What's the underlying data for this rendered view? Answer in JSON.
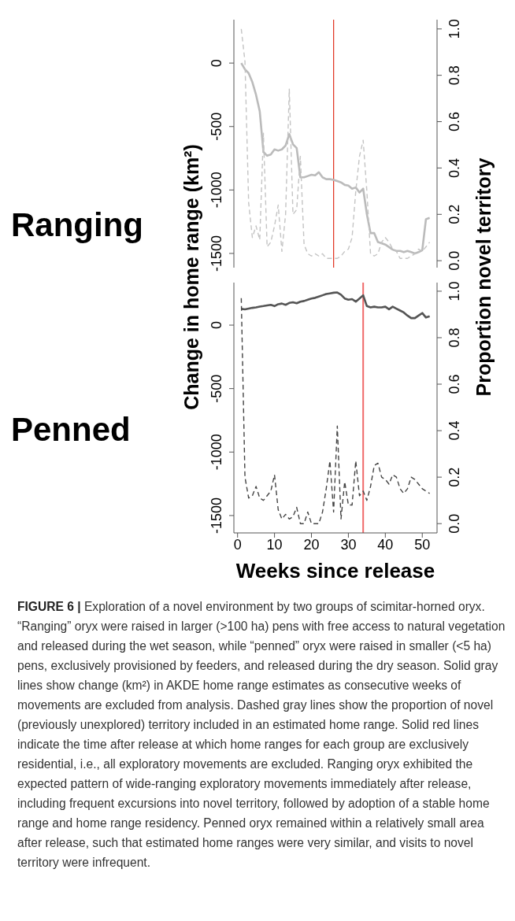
{
  "chart_data": [
    {
      "type": "line",
      "title": "Ranging",
      "ylabel": "Change in home range (km²)",
      "y2label": "Proportion novel territory",
      "x": [
        1,
        2,
        3,
        4,
        5,
        6,
        7,
        8,
        9,
        10,
        11,
        12,
        13,
        14,
        15,
        16,
        17,
        18,
        19,
        20,
        21,
        22,
        23,
        24,
        25,
        26,
        27,
        28,
        29,
        30,
        31,
        32,
        33,
        34,
        35,
        36,
        37,
        38,
        39,
        40,
        41,
        42,
        43,
        44,
        45,
        46,
        47,
        48,
        49,
        50,
        51,
        52
      ],
      "series": [
        {
          "color": "#bbbbbb",
          "line_style": "solid",
          "values": [
            0,
            -50,
            -80,
            -150,
            -250,
            -380,
            -700,
            -730,
            -720,
            -680,
            -690,
            -680,
            -650,
            -560,
            -640,
            -670,
            -900,
            -900,
            -890,
            -880,
            -885,
            -860,
            -900,
            -915,
            -915,
            -920,
            -930,
            -940,
            -960,
            -965,
            -990,
            -980,
            -1020,
            -990,
            -1190,
            -1340,
            -1340,
            -1410,
            -1420,
            -1430,
            -1450,
            -1470,
            -1480,
            -1480,
            -1490,
            -1480,
            -1490,
            -1500,
            -1490,
            -1475,
            -1230,
            -1220
          ]
        },
        {
          "color": "#c4c4c4",
          "line_style": "dashed",
          "axis": "y2",
          "values": [
            1.0,
            0.86,
            0.25,
            0.1,
            0.15,
            0.09,
            0.55,
            0.06,
            0.08,
            0.15,
            0.24,
            0.04,
            0.2,
            0.74,
            0.2,
            0.22,
            0.45,
            0.07,
            0.03,
            0.02,
            0.03,
            0.02,
            0.03,
            0.01,
            0.01,
            0.01,
            0.01,
            0.02,
            0.04,
            0.05,
            0.1,
            0.3,
            0.45,
            0.52,
            0.3,
            0.03,
            0.02,
            0.03,
            0.08,
            0.1,
            0.08,
            0.05,
            0.04,
            0.01,
            0.01,
            0.01,
            0.02,
            0.03,
            0.05,
            0.04,
            0.06,
            0.08
          ]
        }
      ],
      "xlim": [
        -1,
        54
      ],
      "ylim": [
        -1612,
        342
      ],
      "yticks": [
        0,
        -500,
        -1000,
        -1500
      ],
      "y2lim": [
        -0.03,
        1.04
      ],
      "y2ticks": [
        {
          "value": 0,
          "label": "0.0"
        },
        {
          "value": 0.2,
          "label": "0.2"
        },
        {
          "value": 0.4,
          "label": "0.4"
        },
        {
          "value": 0.6,
          "label": "0.6"
        },
        {
          "value": 0.8,
          "label": "0.8"
        },
        {
          "value": 1,
          "label": "1.0"
        }
      ],
      "ref_lines": [
        {
          "axis": "x",
          "value": 26,
          "color": "#e0301e"
        }
      ],
      "tick_labels": [
        "y",
        "y2"
      ]
    },
    {
      "type": "line",
      "title": "Penned",
      "xlabel": "Weeks since release",
      "x": [
        1,
        2,
        3,
        4,
        5,
        6,
        7,
        8,
        9,
        10,
        11,
        12,
        13,
        14,
        15,
        16,
        17,
        18,
        19,
        20,
        21,
        22,
        23,
        24,
        25,
        26,
        27,
        28,
        29,
        30,
        31,
        32,
        33,
        34,
        35,
        36,
        37,
        38,
        39,
        40,
        41,
        42,
        43,
        44,
        45,
        46,
        47,
        48,
        49,
        50,
        51,
        52
      ],
      "series": [
        {
          "color": "#555555",
          "line_style": "solid",
          "values": [
            128,
            124,
            130,
            136,
            140,
            146,
            150,
            155,
            160,
            150,
            165,
            170,
            160,
            175,
            180,
            172,
            185,
            190,
            200,
            210,
            215,
            225,
            235,
            245,
            250,
            255,
            257,
            240,
            210,
            200,
            205,
            185,
            210,
            235,
            150,
            140,
            145,
            140,
            140,
            145,
            125,
            145,
            130,
            115,
            100,
            75,
            55,
            55,
            75,
            95,
            60,
            70
          ]
        },
        {
          "color": "#444444",
          "line_style": "dashed",
          "axis": "y2",
          "values": [
            0.97,
            0.2,
            0.11,
            0.12,
            0.16,
            0.11,
            0.1,
            0.12,
            0.14,
            0.21,
            0.06,
            0.02,
            0.04,
            0.02,
            0.03,
            0.07,
            0.0,
            0.0,
            0.05,
            0.0,
            0.0,
            0.0,
            0.05,
            0.15,
            0.27,
            0.05,
            0.42,
            0.02,
            0.18,
            0.08,
            0.08,
            0.27,
            0.12,
            0.14,
            0.1,
            0.16,
            0.25,
            0.26,
            0.2,
            0.19,
            0.17,
            0.21,
            0.2,
            0.15,
            0.13,
            0.15,
            0.2,
            0.19,
            0.17,
            0.15,
            0.14,
            0.13
          ]
        }
      ],
      "xlim": [
        -1,
        54
      ],
      "xticks": [
        0,
        10,
        20,
        30,
        40,
        50
      ],
      "ylim": [
        -1637,
        335
      ],
      "yticks": [
        0,
        -500,
        -1000,
        -1500
      ],
      "y2lim": [
        -0.04,
        1.037
      ],
      "y2ticks": [
        {
          "value": 0,
          "label": "0.0"
        },
        {
          "value": 0.2,
          "label": "0.2"
        },
        {
          "value": 0.4,
          "label": "0.4"
        },
        {
          "value": 0.6,
          "label": "0.6"
        },
        {
          "value": 0.8,
          "label": "0.8"
        },
        {
          "value": 1,
          "label": "1.0"
        }
      ],
      "ref_lines": [
        {
          "axis": "x",
          "value": 34,
          "color": "#f06a6a"
        }
      ],
      "annotations": [
        "FIGURE 6 |",
        "Exploration of a novel environment by two groups of scimitar-horned oryx. “Ranging” oryx were raised in larger (>100 ha) pens with free access to natural vegetation and released during the wet season, while “penned” oryx were raised in smaller (<5 ha) pens, exclusively provisioned by feeders, and released during the dry season. Solid gray lines show change (km²) in AKDE home range estimates as consecutive weeks of movements are excluded from analysis. Dashed gray lines show the proportion of novel (previously unexplored) territory included in an estimated home range. Solid red lines indicate the time after release at which home ranges for each group are exclusively residential, i.e., all exploratory movements are excluded. Ranging oryx exhibited the expected pattern of wide-ranging exploratory movements immediately after release, including frequent excursions into novel territory, followed by adoption of a stable home range and home range residency. Penned oryx remained within a relatively small area after release, such that estimated home ranges were very similar, and visits to novel territory were infrequent."
      ]
    }
  ]
}
